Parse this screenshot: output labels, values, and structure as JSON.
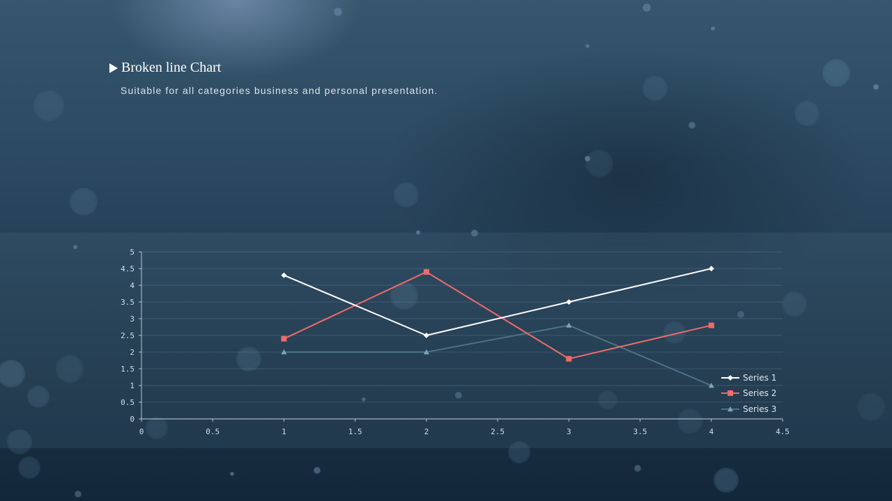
{
  "header": {
    "title": "Broken line Chart",
    "subtitle": "Suitable for all categories business and personal presentation.",
    "arrow_icon": "play-triangle-icon"
  },
  "chart_data": {
    "type": "line",
    "title": "",
    "xlabel": "",
    "ylabel": "",
    "xlim": [
      0,
      4.5
    ],
    "ylim": [
      0,
      5
    ],
    "x_ticks": [
      "0",
      "0.5",
      "1",
      "1.5",
      "2",
      "2.5",
      "3",
      "3.5",
      "4",
      "4.5"
    ],
    "y_ticks": [
      "0",
      "0.5",
      "1",
      "1.5",
      "2",
      "2.5",
      "3",
      "3.5",
      "4",
      "4.5",
      "5"
    ],
    "grid": true,
    "legend_position": "bottom-right",
    "x": [
      1,
      2,
      3,
      4
    ],
    "series": [
      {
        "name": "Series 1",
        "values": [
          4.3,
          2.5,
          3.5,
          4.5
        ],
        "color": "#ffffff",
        "marker": "diamond"
      },
      {
        "name": "Series 2",
        "values": [
          2.4,
          4.4,
          1.8,
          2.8
        ],
        "color": "#ee6b6b",
        "marker": "square"
      },
      {
        "name": "Series 3",
        "values": [
          2.0,
          2.0,
          2.8,
          1.0
        ],
        "color": "#4c7288",
        "marker": "triangle"
      }
    ]
  }
}
